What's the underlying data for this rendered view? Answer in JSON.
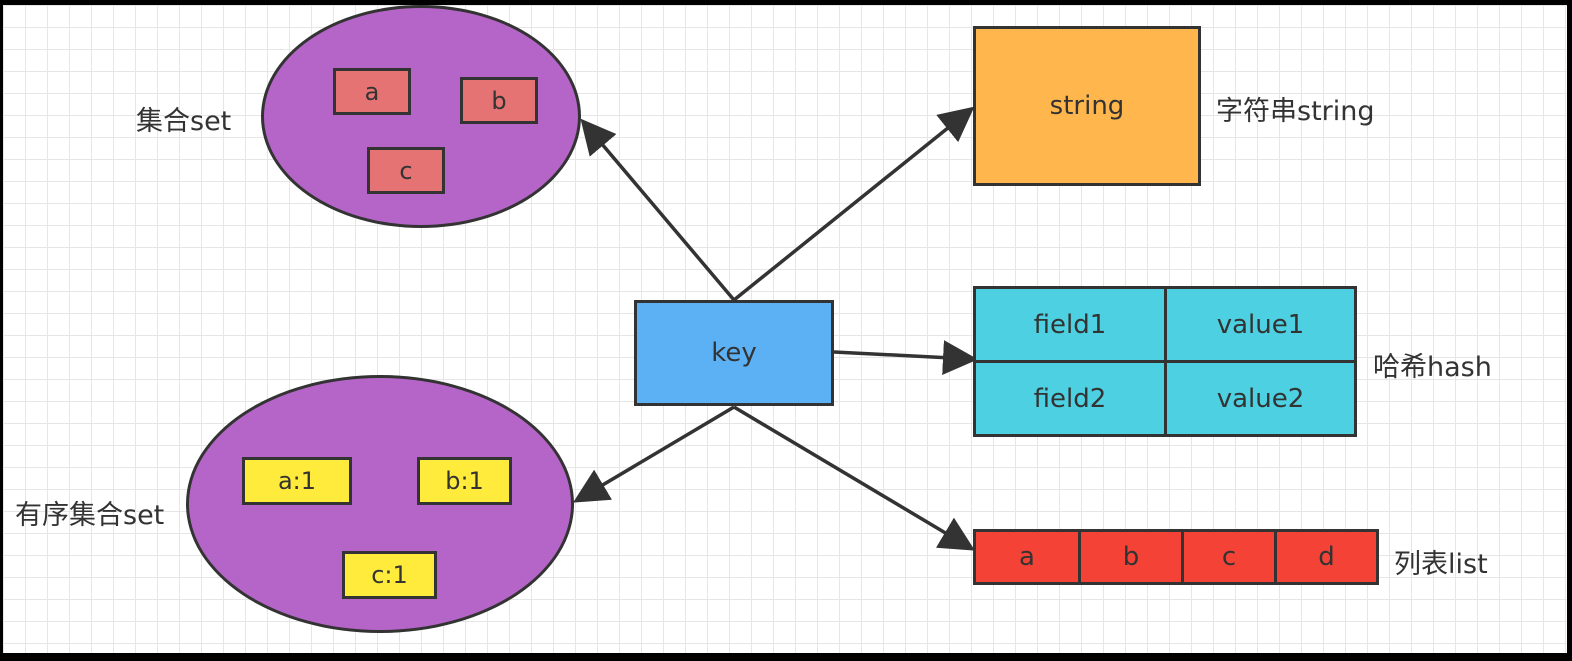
{
  "key": {
    "label": "key"
  },
  "set": {
    "title": "集合set",
    "items": [
      "a",
      "b",
      "c"
    ]
  },
  "zset": {
    "title": "有序集合set",
    "items": [
      "a:1",
      "b:1",
      "c:1"
    ]
  },
  "string": {
    "value": "string",
    "title": "字符串string"
  },
  "hash": {
    "title": "哈希hash",
    "rows": [
      {
        "field": "field1",
        "value": "value1"
      },
      {
        "field": "field2",
        "value": "value2"
      }
    ]
  },
  "list": {
    "title": "列表list",
    "items": [
      "a",
      "b",
      "c",
      "d"
    ]
  },
  "colors": {
    "key": "#5cb1f5",
    "set": "#b565c8",
    "set_item": "#e57373",
    "zset_item": "#ffeb3b",
    "string": "#ffb74d",
    "hash": "#4dd0e1",
    "list": "#f44336"
  }
}
